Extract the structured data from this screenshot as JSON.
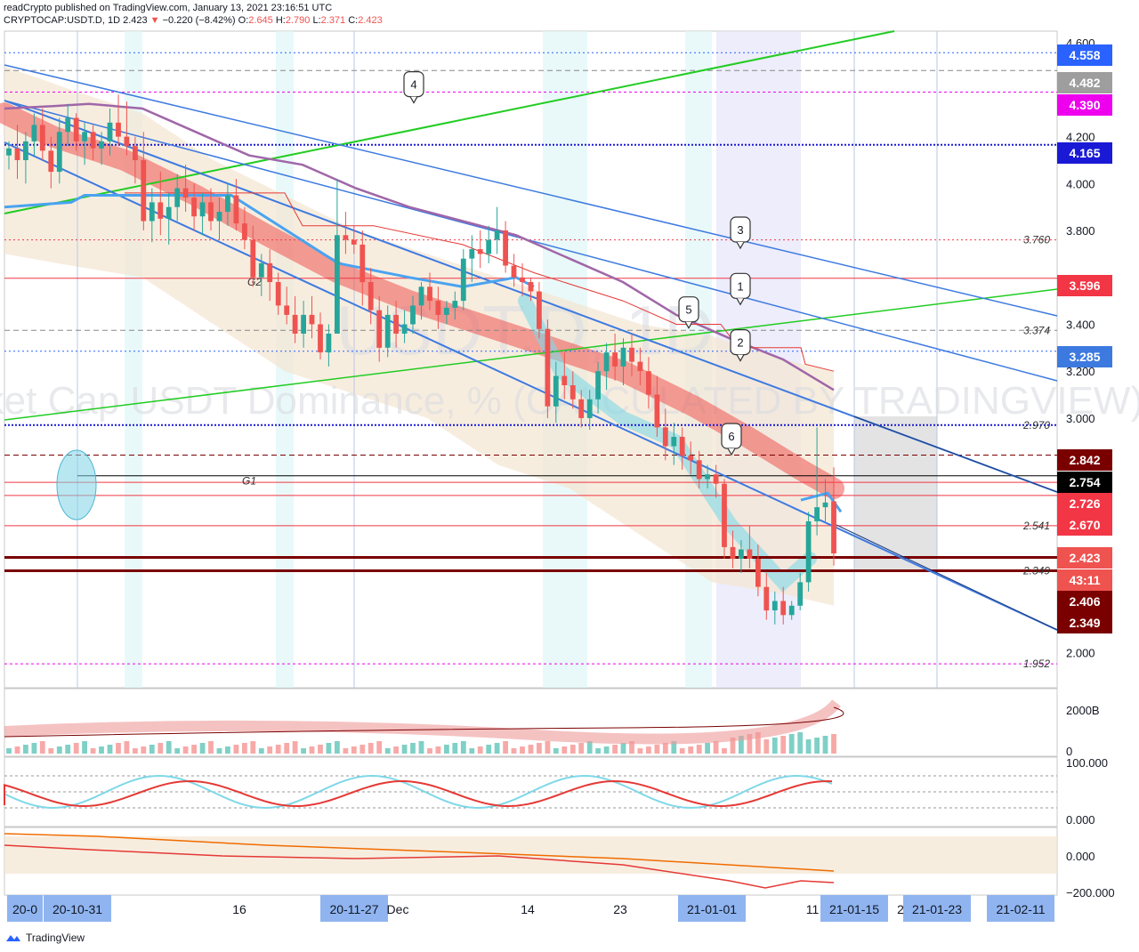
{
  "header": {
    "line1": "readCrypto published on TradingView.com, January 13, 2021 23:16:51 UTC",
    "symbol": "CRYPTOCAP:USDT.D, 1D",
    "last": "2.423",
    "change": "−0.220 (−8.42%)",
    "open_label": "O:",
    "open": "2.645",
    "high_label": "H:",
    "high": "2.790",
    "low_label": "L:",
    "low": "2.371",
    "close_label": "C:",
    "close": "2.423"
  },
  "watermark": {
    "symbol": "USDT.D, 1D",
    "description": "Market Cap USDT Dominance, % (CALCULATED BY TRADINGVIEW)"
  },
  "footer": {
    "brand": "TradingView"
  },
  "colors": {
    "candle_up": "#26a69a",
    "candle_down": "#ef5350",
    "trendline": "#3d7ae0",
    "green_line": "#22cc22",
    "ma_purple": "#a066a8",
    "ma_blue": "#4aa3f0",
    "axis_blue": "#1a49d6",
    "axis_red": "#f23645",
    "axis_magenta": "#ee00ee",
    "axis_gray": "#8c8c8c",
    "axis_dark": "#7a0000",
    "axis_black": "#000000"
  },
  "price_axis": {
    "ticks": [
      "4.600",
      "4.200",
      "4.000",
      "3.800",
      "3.400",
      "3.200",
      "3.000",
      "2.000"
    ],
    "tags": [
      {
        "value": "4.558",
        "color": "#2962ff"
      },
      {
        "value": "4.482",
        "color": "#9e9e9e"
      },
      {
        "value": "4.390",
        "color": "#ee00ee"
      },
      {
        "value": "4.165",
        "color": "#1a1ad6"
      },
      {
        "value": "3.596",
        "color": "#f23645"
      },
      {
        "value": "3.285",
        "color": "#3d7ae0"
      },
      {
        "value": "2.842",
        "color": "#7a0000"
      },
      {
        "value": "2.754",
        "color": "#000000"
      },
      {
        "value": "2.726",
        "color": "#f23645"
      },
      {
        "value": "2.670",
        "color": "#f23645"
      },
      {
        "value": "2.423",
        "color": "#ef5350"
      },
      {
        "value": "43:11",
        "color": "#ef5350"
      },
      {
        "value": "2.406",
        "color": "#7a0000"
      },
      {
        "value": "2.349",
        "color": "#7a0000"
      }
    ]
  },
  "level_labels": [
    "3.760",
    "3.374",
    "2.970",
    "2.541",
    "2.349",
    "1.952"
  ],
  "markers": [
    "1",
    "2",
    "3",
    "4",
    "5",
    "6"
  ],
  "line_labels": [
    "G1",
    "G2"
  ],
  "volume_axis": [
    "2000B",
    "0"
  ],
  "osc_axis": [
    "100.000",
    "0.000"
  ],
  "osc2_axis": [
    "0.000",
    "−200.000"
  ],
  "time_axis": {
    "labels": [
      "20-0",
      "20-10-31",
      "16",
      "20-11-27",
      "Dec",
      "14",
      "23",
      "21-01-01",
      "11",
      "21-01-15",
      "21-01-23",
      "21-02-11",
      "2"
    ],
    "highlighted": [
      "20-0",
      "20-10-31",
      "20-11-27",
      "21-01-01",
      "21-01-15",
      "21-01-23",
      "21-02-11"
    ]
  },
  "chart_data": {
    "type": "candlestick",
    "title": "Market Cap USDT Dominance, % (CALCULATED BY TRADINGVIEW)",
    "symbol": "CRYPTOCAP:USDT.D",
    "interval": "1D",
    "ylabel": "%",
    "ylim": [
      1.85,
      4.65
    ],
    "candles": [
      [
        4.12,
        4.18,
        4.06,
        4.15
      ],
      [
        4.15,
        4.25,
        4.02,
        4.1
      ],
      [
        4.1,
        4.22,
        4.0,
        4.18
      ],
      [
        4.18,
        4.3,
        4.12,
        4.25
      ],
      [
        4.25,
        4.32,
        4.1,
        4.14
      ],
      [
        4.14,
        4.2,
        3.98,
        4.05
      ],
      [
        4.05,
        4.28,
        4.0,
        4.22
      ],
      [
        4.22,
        4.34,
        4.16,
        4.28
      ],
      [
        4.28,
        4.3,
        4.14,
        4.18
      ],
      [
        4.18,
        4.26,
        4.08,
        4.22
      ],
      [
        4.22,
        4.25,
        4.1,
        4.15
      ],
      [
        4.15,
        4.22,
        4.08,
        4.18
      ],
      [
        4.18,
        4.32,
        4.12,
        4.26
      ],
      [
        4.26,
        4.38,
        4.16,
        4.2
      ],
      [
        4.2,
        4.35,
        4.12,
        4.16
      ],
      [
        4.16,
        4.2,
        4.0,
        4.1
      ],
      [
        4.1,
        4.22,
        3.8,
        3.84
      ],
      [
        3.84,
        3.98,
        3.75,
        3.92
      ],
      [
        3.92,
        4.05,
        3.78,
        3.85
      ],
      [
        3.85,
        3.96,
        3.74,
        3.9
      ],
      [
        3.9,
        4.04,
        3.84,
        3.98
      ],
      [
        3.98,
        4.08,
        3.88,
        3.94
      ],
      [
        3.94,
        4.0,
        3.8,
        3.86
      ],
      [
        3.86,
        3.96,
        3.78,
        3.92
      ],
      [
        3.92,
        3.98,
        3.8,
        3.84
      ],
      [
        3.84,
        3.94,
        3.76,
        3.88
      ],
      [
        3.88,
        4.0,
        3.82,
        3.95
      ],
      [
        3.95,
        4.02,
        3.8,
        3.83
      ],
      [
        3.83,
        3.9,
        3.72,
        3.76
      ],
      [
        3.76,
        3.82,
        3.56,
        3.6
      ],
      [
        3.6,
        3.7,
        3.52,
        3.66
      ],
      [
        3.66,
        3.72,
        3.5,
        3.58
      ],
      [
        3.58,
        3.62,
        3.44,
        3.48
      ],
      [
        3.48,
        3.56,
        3.4,
        3.44
      ],
      [
        3.44,
        3.52,
        3.32,
        3.36
      ],
      [
        3.36,
        3.5,
        3.3,
        3.44
      ],
      [
        3.44,
        3.52,
        3.34,
        3.4
      ],
      [
        3.4,
        3.45,
        3.25,
        3.28
      ],
      [
        3.28,
        3.4,
        3.22,
        3.36
      ],
      [
        3.36,
        4.02,
        3.36,
        3.78
      ],
      [
        3.78,
        3.88,
        3.7,
        3.76
      ],
      [
        3.76,
        3.82,
        3.7,
        3.74
      ],
      [
        3.74,
        3.8,
        3.48,
        3.58
      ],
      [
        3.58,
        3.64,
        3.4,
        3.46
      ],
      [
        3.46,
        3.52,
        3.24,
        3.3
      ],
      [
        3.3,
        3.48,
        3.26,
        3.44
      ],
      [
        3.44,
        3.5,
        3.3,
        3.36
      ],
      [
        3.36,
        3.46,
        3.32,
        3.4
      ],
      [
        3.4,
        3.52,
        3.36,
        3.48
      ],
      [
        3.48,
        3.58,
        3.42,
        3.56
      ],
      [
        3.56,
        3.62,
        3.46,
        3.5
      ],
      [
        3.5,
        3.56,
        3.38,
        3.44
      ],
      [
        3.44,
        3.5,
        3.4,
        3.47
      ],
      [
        3.47,
        3.54,
        3.42,
        3.5
      ],
      [
        3.5,
        3.72,
        3.46,
        3.68
      ],
      [
        3.68,
        3.78,
        3.58,
        3.72
      ],
      [
        3.72,
        3.8,
        3.64,
        3.7
      ],
      [
        3.7,
        3.82,
        3.66,
        3.76
      ],
      [
        3.76,
        3.9,
        3.7,
        3.8
      ],
      [
        3.8,
        3.84,
        3.62,
        3.65
      ],
      [
        3.65,
        3.7,
        3.56,
        3.6
      ],
      [
        3.6,
        3.66,
        3.52,
        3.58
      ],
      [
        3.58,
        3.6,
        3.5,
        3.54
      ],
      [
        3.54,
        3.58,
        3.34,
        3.38
      ],
      [
        3.38,
        3.42,
        3.0,
        3.05
      ],
      [
        3.05,
        3.24,
        2.98,
        3.18
      ],
      [
        3.18,
        3.28,
        3.08,
        3.14
      ],
      [
        3.14,
        3.2,
        3.04,
        3.08
      ],
      [
        3.08,
        3.12,
        2.96,
        3.0
      ],
      [
        3.0,
        3.12,
        2.95,
        3.08
      ],
      [
        3.08,
        3.24,
        3.02,
        3.2
      ],
      [
        3.2,
        3.32,
        3.12,
        3.28
      ],
      [
        3.28,
        3.36,
        3.16,
        3.22
      ],
      [
        3.22,
        3.34,
        3.14,
        3.3
      ],
      [
        3.3,
        3.36,
        3.18,
        3.24
      ],
      [
        3.24,
        3.3,
        3.14,
        3.2
      ],
      [
        3.2,
        3.26,
        3.04,
        3.1
      ],
      [
        3.1,
        3.18,
        2.92,
        2.96
      ],
      [
        2.96,
        3.04,
        2.82,
        2.88
      ],
      [
        2.88,
        2.98,
        2.8,
        2.92
      ],
      [
        2.92,
        2.96,
        2.78,
        2.84
      ],
      [
        2.84,
        2.9,
        2.76,
        2.82
      ],
      [
        2.82,
        2.86,
        2.7,
        2.74
      ],
      [
        2.74,
        2.8,
        2.7,
        2.76
      ],
      [
        2.76,
        2.8,
        2.66,
        2.72
      ],
      [
        2.72,
        2.74,
        2.4,
        2.45
      ],
      [
        2.45,
        2.52,
        2.36,
        2.4
      ],
      [
        2.4,
        2.48,
        2.34,
        2.44
      ],
      [
        2.44,
        2.54,
        2.36,
        2.4
      ],
      [
        2.4,
        2.46,
        2.24,
        2.28
      ],
      [
        2.28,
        2.34,
        2.14,
        2.18
      ],
      [
        2.18,
        2.26,
        2.12,
        2.22
      ],
      [
        2.22,
        2.28,
        2.12,
        2.16
      ],
      [
        2.16,
        2.22,
        2.14,
        2.2
      ],
      [
        2.2,
        2.34,
        2.18,
        2.3
      ],
      [
        2.3,
        2.6,
        2.26,
        2.56
      ],
      [
        2.56,
        2.96,
        2.5,
        2.62
      ],
      [
        2.62,
        2.74,
        2.55,
        2.64
      ],
      [
        2.645,
        2.79,
        2.371,
        2.423
      ]
    ]
  }
}
